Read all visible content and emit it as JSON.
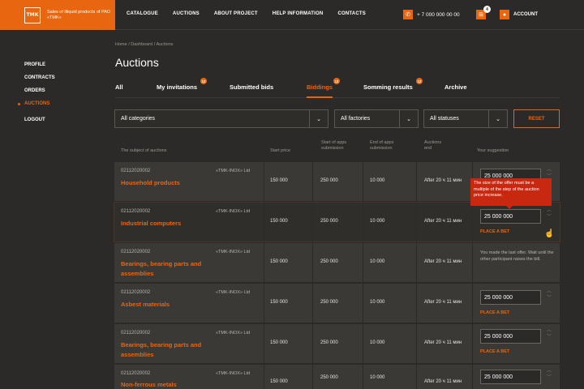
{
  "header": {
    "logo_mark": "ТМК",
    "logo_text": "Sales of illiquid products of PAO «TMK»",
    "nav": [
      "CATALOGUE",
      "AUCTIONS",
      "ABOUT PROJECT",
      "HELP INFORMATION",
      "CONTACTS"
    ],
    "phone": "+ 7 000 000 00 00",
    "cart_count": "4",
    "account_label": "ACCOUNT"
  },
  "sidebar": {
    "items": [
      "PROFILE",
      "CONTRACTS",
      "ORDERS",
      "AUCTIONS"
    ],
    "active": "AUCTIONS",
    "logout": "LOGOUT"
  },
  "breadcrumb": "Home  /  Dashboard  /  Auctions",
  "title": "Auctions",
  "tabs": [
    {
      "label": "All",
      "badge": ""
    },
    {
      "label": "My invitations",
      "badge": "12"
    },
    {
      "label": "Submitted bids",
      "badge": ""
    },
    {
      "label": "Biddings",
      "badge": "12",
      "active": true
    },
    {
      "label": "Somming results",
      "badge": "12"
    },
    {
      "label": "Archive",
      "badge": ""
    }
  ],
  "filters": {
    "category": "All categories",
    "factory": "All factories",
    "status": "All statuses",
    "reset": "RESET"
  },
  "columns": {
    "subject": "The subject of auctions",
    "start_price": "Start price",
    "start_apps": "Start of apps submission",
    "end_apps": "End of apps submission",
    "auctions_end": "Auctions end",
    "suggestion": "Your suggestion"
  },
  "rows": [
    {
      "code": "02112020002",
      "company": "«TMK-INOX» Ltd",
      "subject": "Household products",
      "start_price": "150 000",
      "start_apps": "250 000",
      "end_apps": "10 000",
      "end": "After 20 ч 11 мин",
      "bid": "25 000 000",
      "place_bet": "",
      "note": ""
    },
    {
      "code": "02112020002",
      "company": "«TMK-INOX» Ltd",
      "subject": "Industrial computers",
      "start_price": "150 000",
      "start_apps": "250 000",
      "end_apps": "10 000",
      "end": "After 20 ч 11 мин",
      "bid": "25 000 000",
      "place_bet": "PLACE A BET",
      "note": ""
    },
    {
      "code": "02112020002",
      "company": "«TMK-INOX» Ltd",
      "subject": "Bearings, bearing parts and assemblies",
      "start_price": "150 000",
      "start_apps": "250 000",
      "end_apps": "10 000",
      "end": "After 20 ч 11 мин",
      "bid": "",
      "place_bet": "",
      "note": "You made the last offer. Wait until the other participant raises the bill."
    },
    {
      "code": "02112020002",
      "company": "«TMK-INOX» Ltd",
      "subject": "Asbest materials",
      "start_price": "150 000",
      "start_apps": "250 000",
      "end_apps": "10 000",
      "end": "After 20 ч 11 мин",
      "bid": "25 000 000",
      "place_bet": "PLACE A BET",
      "note": ""
    },
    {
      "code": "02112020002",
      "company": "«TMK-INOX» Ltd",
      "subject": "Bearings, bearing parts and assemblies",
      "start_price": "150 000",
      "start_apps": "250 000",
      "end_apps": "10 000",
      "end": "After 20 ч 11 мин",
      "bid": "25 000 000",
      "place_bet": "PLACE A BET",
      "note": ""
    },
    {
      "code": "02112020002",
      "company": "«TMK-INOX» Ltd",
      "subject": "Non-ferrous metals",
      "start_price": "150 000",
      "start_apps": "250 000",
      "end_apps": "10 000",
      "end": "After 20 ч 11 мин",
      "bid": "25 000 000",
      "place_bet": "",
      "note": ""
    }
  ],
  "tooltip": "The size of the offer must be a multiple of the step of the auction price increase.",
  "colors": {
    "accent": "#e8660f",
    "background": "#2b2a28",
    "row": "#3a3936",
    "error": "#c8280f"
  }
}
